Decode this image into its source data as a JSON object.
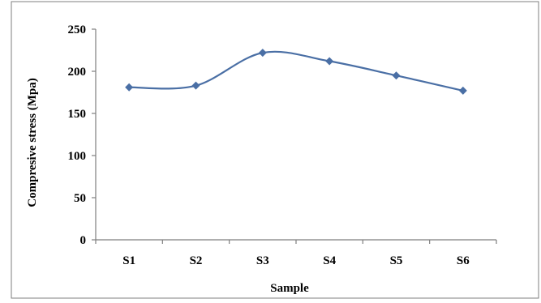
{
  "chart_data": {
    "type": "line",
    "title": "",
    "xlabel": "Sample",
    "ylabel": "Compresive stress (Mpa)",
    "categories": [
      "S1",
      "S2",
      "S3",
      "S4",
      "S5",
      "S6"
    ],
    "series": [
      {
        "values": [
          181,
          183,
          222,
          212,
          195,
          177
        ],
        "color": "#4a6fa5"
      }
    ],
    "ylim": [
      0,
      250
    ],
    "yticks": [
      0,
      50,
      100,
      150,
      200,
      250
    ],
    "grid": false,
    "legend": "none",
    "line_style": "smooth",
    "marker": "diamond"
  }
}
